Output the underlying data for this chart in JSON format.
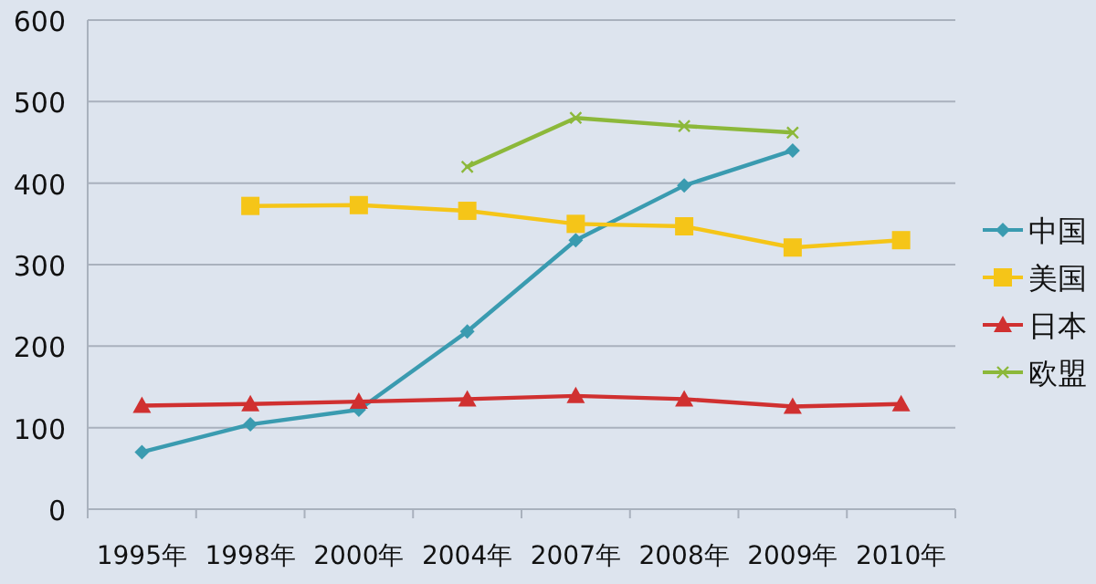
{
  "chart_data": {
    "type": "line",
    "categories": [
      "1995年",
      "1998年",
      "2000年",
      "2004年",
      "2007年",
      "2008年",
      "2009年",
      "2010年"
    ],
    "series": [
      {
        "name": "中国",
        "color": "#3a9bb0",
        "marker": "diamond",
        "values": [
          70,
          104,
          122,
          218,
          330,
          397,
          440,
          null
        ]
      },
      {
        "name": "美国",
        "color": "#f5c518",
        "marker": "square",
        "values": [
          null,
          372,
          373,
          366,
          350,
          347,
          321,
          330
        ]
      },
      {
        "name": "日本",
        "color": "#d03030",
        "marker": "triangle",
        "values": [
          127,
          129,
          132,
          135,
          139,
          135,
          126,
          129
        ]
      },
      {
        "name": "欧盟",
        "color": "#8cb83a",
        "marker": "cross",
        "values": [
          null,
          null,
          null,
          420,
          480,
          470,
          462,
          null
        ]
      }
    ],
    "ylim": [
      0,
      600
    ],
    "yticks": [
      0,
      100,
      200,
      300,
      400,
      500,
      600
    ],
    "grid": "y",
    "legend": "right",
    "line_style": "solid"
  }
}
